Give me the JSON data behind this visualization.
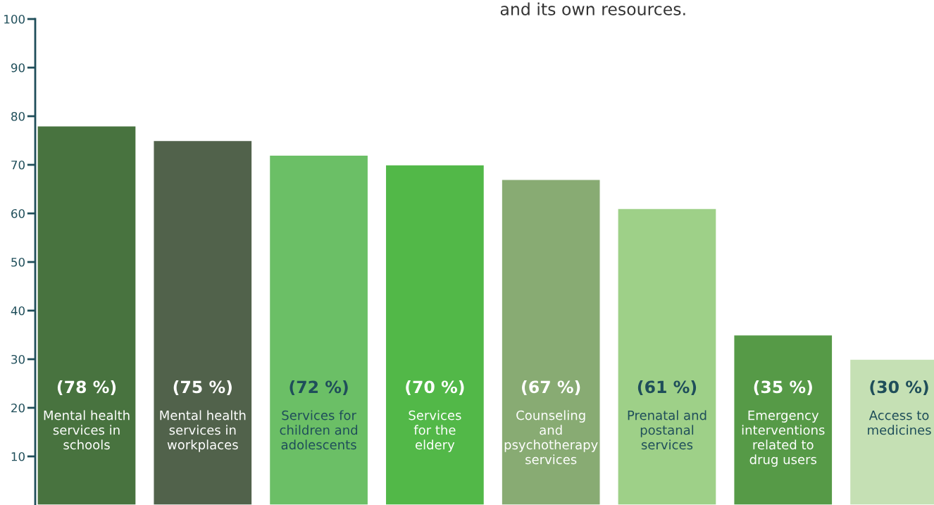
{
  "chart_data": {
    "type": "bar",
    "categories": [
      "Mental health\nservices in\nschools",
      "Mental health\nservices in\nworkplaces",
      "Services for\nchildren and\nadolescents",
      "Services\nfor the\neldery",
      "Counseling\nand\npsychotherapy\nservices",
      "Prenatal and\npostanal\nservices",
      "Emergency\ninterventions\nrelated to\ndrug users",
      "Access to\nmedicines"
    ],
    "values": [
      78,
      75,
      72,
      70,
      67,
      61,
      35,
      30
    ],
    "colors": [
      "#48733f",
      "#51624b",
      "#6bbf66",
      "#52b848",
      "#88ab73",
      "#9ed088",
      "#569a47",
      "#c5e0b4"
    ],
    "value_labels": [
      "(78 %)",
      "(75 %)",
      "(72 %)",
      "(70 %)",
      "(67 %)",
      "(61 %)",
      "(35 %)",
      "(30 %)"
    ],
    "ylim": [
      0,
      100
    ],
    "yticks": [
      10,
      20,
      30,
      40,
      50,
      60,
      70,
      80,
      90,
      100
    ],
    "annotations": [
      "and its own resources."
    ],
    "grid": false,
    "legend": false
  }
}
